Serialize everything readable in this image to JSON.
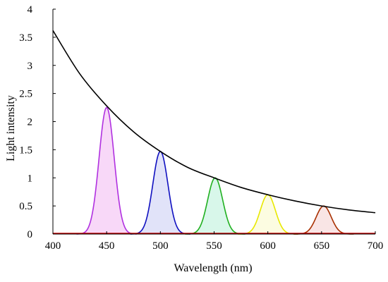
{
  "chart_data": {
    "type": "line",
    "xlabel": "Wavelength (nm)",
    "ylabel": "Light intensity",
    "xlim": [
      400,
      700
    ],
    "ylim": [
      0,
      4
    ],
    "x_ticks": [
      "400",
      "450",
      "500",
      "550",
      "600",
      "650",
      "700"
    ],
    "y_ticks": [
      "0",
      "0.5",
      "1",
      "1.5",
      "2",
      "2.5",
      "3",
      "3.5",
      "4"
    ],
    "grid": false,
    "legend": "none",
    "envelope": {
      "color": "#000000",
      "points": [
        [
          400,
          3.62
        ],
        [
          425,
          2.85
        ],
        [
          450,
          2.28
        ],
        [
          475,
          1.82
        ],
        [
          500,
          1.47
        ],
        [
          525,
          1.19
        ],
        [
          550,
          1.0
        ],
        [
          575,
          0.83
        ],
        [
          600,
          0.7
        ],
        [
          625,
          0.59
        ],
        [
          650,
          0.5
        ],
        [
          675,
          0.43
        ],
        [
          700,
          0.38
        ]
      ]
    },
    "series": [
      {
        "peak_x": 450,
        "peak_y": 2.25,
        "color": "#b030e0",
        "fill": "#f2b8f2"
      },
      {
        "peak_x": 500,
        "peak_y": 1.47,
        "color": "#1010c0",
        "fill": "#c8ccf4"
      },
      {
        "peak_x": 551,
        "peak_y": 1.0,
        "color": "#20b020",
        "fill": "#b8f0d8"
      },
      {
        "peak_x": 600,
        "peak_y": 0.7,
        "color": "#e8e800",
        "fill": "#fafac8"
      },
      {
        "peak_x": 652,
        "peak_y": 0.5,
        "color": "#a83000",
        "fill": "#f4d0d0"
      }
    ],
    "baseline_color": "#c00000"
  }
}
